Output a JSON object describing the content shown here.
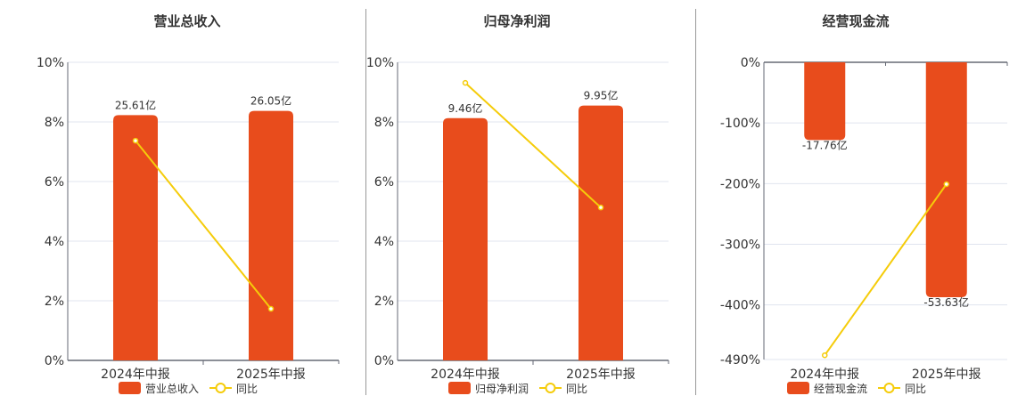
{
  "colors": {
    "bar": "#e84c1c",
    "line": "#f5cc0a",
    "grid": "#e0e4ef",
    "axis": "#666a75",
    "text": "#333333"
  },
  "chart_data": [
    {
      "type": "bar+line",
      "title": "营业总收入",
      "categories": [
        "2024年中报",
        "2025年中报"
      ],
      "bar_series": {
        "name": "营业总收入",
        "values": [
          25.61,
          26.05
        ],
        "labels": [
          "25.61亿",
          "26.05亿"
        ],
        "unit": "亿"
      },
      "line_series": {
        "name": "同比",
        "values": [
          7.37,
          1.73
        ],
        "unit": "%"
      },
      "ylim": [
        0,
        10
      ],
      "yticks": [
        0,
        2,
        4,
        6,
        8,
        10
      ],
      "ytick_labels": [
        "0%",
        "2%",
        "4%",
        "6%",
        "8%",
        "10%"
      ],
      "grid": true,
      "legend": "bottom"
    },
    {
      "type": "bar+line",
      "title": "归母净利润",
      "categories": [
        "2024年中报",
        "2025年中报"
      ],
      "bar_series": {
        "name": "归母净利润",
        "values": [
          9.46,
          9.95
        ],
        "labels": [
          "9.46亿",
          "9.95亿"
        ],
        "unit": "亿"
      },
      "line_series": {
        "name": "同比",
        "values": [
          9.31,
          5.13
        ],
        "unit": "%"
      },
      "ylim": [
        0,
        10
      ],
      "yticks": [
        0,
        2,
        4,
        6,
        8,
        10
      ],
      "ytick_labels": [
        "0%",
        "2%",
        "4%",
        "6%",
        "8%",
        "10%"
      ],
      "grid": true,
      "legend": "bottom"
    },
    {
      "type": "bar+line",
      "title": "经营现金流",
      "categories": [
        "2024年中报",
        "2025年中报"
      ],
      "bar_series": {
        "name": "经营现金流",
        "values": [
          -17.76,
          -53.63
        ],
        "labels": [
          "-17.76亿",
          "-53.63亿"
        ],
        "unit": "亿"
      },
      "line_series": {
        "name": "同比",
        "values": [
          -483,
          -201
        ],
        "unit": "%"
      },
      "ylim": [
        -490,
        0
      ],
      "yticks": [
        0,
        -100,
        -200,
        -300,
        -400,
        -490
      ],
      "ytick_labels": [
        "0%",
        "-100%",
        "-200%",
        "-300%",
        "-400%",
        "-490%"
      ],
      "grid": true,
      "legend": "bottom"
    }
  ]
}
